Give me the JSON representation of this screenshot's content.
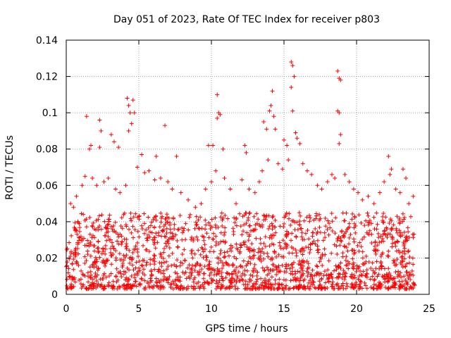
{
  "chart_data": {
    "type": "scatter",
    "title": "Day 051 of 2023, Rate Of TEC Index for receiver p803",
    "xlabel": "GPS time / hours",
    "ylabel": "ROTI / TECUs",
    "xlim": [
      0,
      25
    ],
    "ylim": [
      0,
      0.14
    ],
    "xticks": [
      0,
      5,
      10,
      15,
      20,
      25
    ],
    "yticks": [
      0,
      0.02,
      0.04,
      0.06,
      0.08,
      0.1,
      0.12,
      0.14
    ],
    "xtick_labels": [
      "0",
      "5",
      "10",
      "15",
      "20",
      "25"
    ],
    "ytick_labels": [
      "0",
      "0.02",
      "0.04",
      "0.06",
      "0.08",
      "0.1",
      "0.12",
      "0.14"
    ],
    "grid": true,
    "marker": "+",
    "color": "#ff0000",
    "series": [
      {
        "name": "ROTI p803",
        "points": [
          [
            1.4,
            0.098
          ],
          [
            2.3,
            0.096
          ],
          [
            2.4,
            0.09
          ],
          [
            3.1,
            0.088
          ],
          [
            3.3,
            0.084
          ],
          [
            4.2,
            0.108
          ],
          [
            4.3,
            0.104
          ],
          [
            4.4,
            0.1
          ],
          [
            4.6,
            0.107
          ],
          [
            4.7,
            0.1
          ],
          [
            4.3,
            0.09
          ],
          [
            4.5,
            0.094
          ],
          [
            6.8,
            0.093
          ],
          [
            1.7,
            0.082
          ],
          [
            1.6,
            0.08
          ],
          [
            2.3,
            0.081
          ],
          [
            3.6,
            0.081
          ],
          [
            5.2,
            0.077
          ],
          [
            6.2,
            0.076
          ],
          [
            7.6,
            0.076
          ],
          [
            9.8,
            0.082
          ],
          [
            10.1,
            0.082
          ],
          [
            10.4,
            0.11
          ],
          [
            10.5,
            0.1
          ],
          [
            10.4,
            0.097
          ],
          [
            10.6,
            0.099
          ],
          [
            10.8,
            0.08
          ],
          [
            12.3,
            0.082
          ],
          [
            12.4,
            0.078
          ],
          [
            13.6,
            0.095
          ],
          [
            13.8,
            0.091
          ],
          [
            14.0,
            0.101
          ],
          [
            14.1,
            0.104
          ],
          [
            14.2,
            0.112
          ],
          [
            14.3,
            0.098
          ],
          [
            14.4,
            0.091
          ],
          [
            15.0,
            0.085
          ],
          [
            15.2,
            0.082
          ],
          [
            15.5,
            0.128
          ],
          [
            15.6,
            0.126
          ],
          [
            15.7,
            0.12
          ],
          [
            15.5,
            0.114
          ],
          [
            15.6,
            0.101
          ],
          [
            15.8,
            0.089
          ],
          [
            15.9,
            0.086
          ],
          [
            16.1,
            0.083
          ],
          [
            18.7,
            0.123
          ],
          [
            18.8,
            0.119
          ],
          [
            18.9,
            0.118
          ],
          [
            18.7,
            0.101
          ],
          [
            18.8,
            0.1
          ],
          [
            18.9,
            0.088
          ],
          [
            18.8,
            0.083
          ],
          [
            22.2,
            0.076
          ],
          [
            22.4,
            0.069
          ],
          [
            23.2,
            0.069
          ],
          [
            23.4,
            0.064
          ],
          [
            0.3,
            0.05
          ],
          [
            0.5,
            0.048
          ],
          [
            0.7,
            0.054
          ],
          [
            1.1,
            0.06
          ],
          [
            1.3,
            0.065
          ],
          [
            1.8,
            0.064
          ],
          [
            2.1,
            0.06
          ],
          [
            2.6,
            0.062
          ],
          [
            2.9,
            0.064
          ],
          [
            3.4,
            0.058
          ],
          [
            3.7,
            0.056
          ],
          [
            4.1,
            0.06
          ],
          [
            4.9,
            0.07
          ],
          [
            5.4,
            0.067
          ],
          [
            5.7,
            0.068
          ],
          [
            6.1,
            0.063
          ],
          [
            6.5,
            0.064
          ],
          [
            7.0,
            0.062
          ],
          [
            7.3,
            0.058
          ],
          [
            7.9,
            0.056
          ],
          [
            8.4,
            0.052
          ],
          [
            8.9,
            0.048
          ],
          [
            9.3,
            0.05
          ],
          [
            9.6,
            0.058
          ],
          [
            10.0,
            0.062
          ],
          [
            10.3,
            0.068
          ],
          [
            10.9,
            0.064
          ],
          [
            11.3,
            0.058
          ],
          [
            11.7,
            0.05
          ],
          [
            12.1,
            0.063
          ],
          [
            12.6,
            0.058
          ],
          [
            13.0,
            0.056
          ],
          [
            13.3,
            0.062
          ],
          [
            13.5,
            0.068
          ],
          [
            13.9,
            0.074
          ],
          [
            14.6,
            0.072
          ],
          [
            14.9,
            0.069
          ],
          [
            15.3,
            0.074
          ],
          [
            16.3,
            0.072
          ],
          [
            16.6,
            0.068
          ],
          [
            16.9,
            0.066
          ],
          [
            17.3,
            0.06
          ],
          [
            17.6,
            0.058
          ],
          [
            18.0,
            0.062
          ],
          [
            18.3,
            0.066
          ],
          [
            18.5,
            0.064
          ],
          [
            19.2,
            0.066
          ],
          [
            19.5,
            0.062
          ],
          [
            19.8,
            0.058
          ],
          [
            20.1,
            0.056
          ],
          [
            20.4,
            0.052
          ],
          [
            20.8,
            0.054
          ],
          [
            21.2,
            0.05
          ],
          [
            21.6,
            0.056
          ],
          [
            21.9,
            0.062
          ],
          [
            22.3,
            0.066
          ],
          [
            22.7,
            0.058
          ],
          [
            23.0,
            0.056
          ],
          [
            23.6,
            0.05
          ],
          [
            23.9,
            0.054
          ]
        ],
        "band": {
          "description": "dense baseline of ROTI values across 0-24 h",
          "x_range": [
            0,
            24
          ],
          "y_range": [
            0.003,
            0.045
          ]
        }
      }
    ]
  }
}
